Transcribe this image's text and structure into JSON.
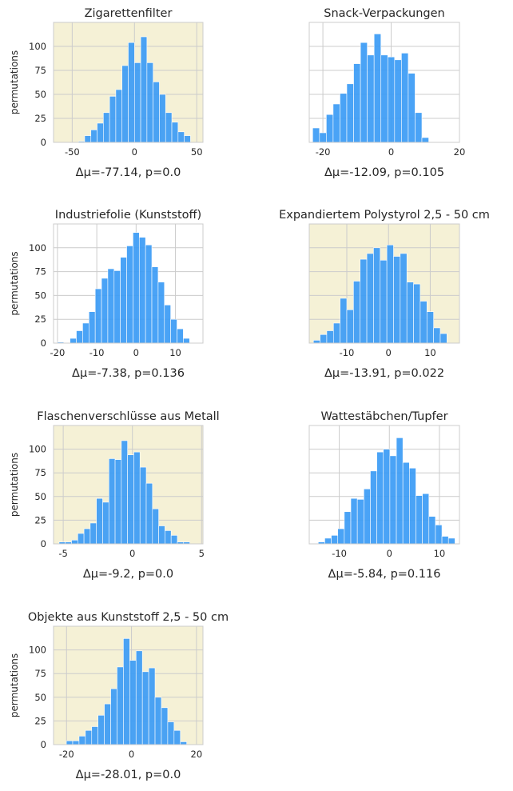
{
  "figure": {
    "background": "#ffffff",
    "highlight_background": "#f5f1d6",
    "bar_color": "#3b9bf5",
    "grid_color": "#cccccc"
  },
  "chart_data": [
    {
      "type": "bar",
      "title": "Zigarettenfilter",
      "ylabel": "permutations",
      "xlabel": "Δμ=-77.14, p=0.0",
      "highlight": true,
      "xlim": [
        -65,
        55
      ],
      "ylim": [
        0,
        125
      ],
      "xticks": [
        -50,
        0,
        50
      ],
      "yticks": [
        0,
        25,
        50,
        75,
        100
      ],
      "bin_start": -60,
      "bin_width": 5,
      "counts": [
        0,
        0,
        0,
        1,
        7,
        13,
        20,
        31,
        48,
        55,
        80,
        104,
        83,
        110,
        83,
        63,
        50,
        31,
        21,
        11,
        7,
        0,
        0
      ]
    },
    {
      "type": "bar",
      "title": "Snack-Verpackungen",
      "ylabel": "",
      "xlabel": "Δμ=-12.09, p=0.105",
      "highlight": false,
      "xlim": [
        -24,
        20
      ],
      "ylim": [
        0,
        125
      ],
      "xticks": [
        -20,
        0,
        20
      ],
      "yticks": [
        0,
        25,
        50,
        75,
        100
      ],
      "bin_start": -23,
      "bin_width": 2,
      "counts": [
        15,
        10,
        29,
        40,
        51,
        61,
        82,
        104,
        91,
        113,
        91,
        89,
        86,
        93,
        72,
        31,
        5
      ]
    },
    {
      "type": "bar",
      "title": "Industriefolie (Kunststoff)",
      "ylabel": "permutations",
      "xlabel": "Δμ=-7.38, p=0.136",
      "highlight": false,
      "xlim": [
        -21,
        17
      ],
      "ylim": [
        0,
        125
      ],
      "xticks": [
        -20,
        -10,
        0,
        10
      ],
      "yticks": [
        0,
        25,
        50,
        75,
        100
      ],
      "bin_start": -20,
      "bin_width": 1.6,
      "counts": [
        1,
        0,
        5,
        13,
        21,
        33,
        57,
        68,
        78,
        76,
        90,
        102,
        116,
        111,
        103,
        80,
        64,
        40,
        25,
        15,
        5
      ]
    },
    {
      "type": "bar",
      "title": "Expandiertem Polystyrol 2,5 - 50 cm",
      "ylabel": "",
      "xlabel": "Δμ=-13.91, p=0.022",
      "highlight": true,
      "xlim": [
        -19,
        17
      ],
      "ylim": [
        0,
        125
      ],
      "xticks": [
        -10,
        0,
        10
      ],
      "yticks": [
        0,
        25,
        50,
        75,
        100
      ],
      "bin_start": -18,
      "bin_width": 1.6,
      "counts": [
        3,
        9,
        13,
        21,
        47,
        35,
        65,
        88,
        94,
        100,
        87,
        103,
        91,
        94,
        64,
        62,
        44,
        33,
        16,
        10
      ]
    },
    {
      "type": "bar",
      "title": "Flaschenverschlüsse aus Metall",
      "ylabel": "permutations",
      "xlabel": "Δμ=-9.2, p=0.0",
      "highlight": true,
      "xlim": [
        -5.7,
        5.1
      ],
      "ylim": [
        0,
        125
      ],
      "xticks": [
        -5,
        0,
        5
      ],
      "yticks": [
        0,
        25,
        50,
        75,
        100
      ],
      "bin_start": -5.3,
      "bin_width": 0.45,
      "counts": [
        2,
        2,
        4,
        11,
        16,
        22,
        48,
        44,
        90,
        89,
        109,
        94,
        97,
        81,
        64,
        37,
        19,
        14,
        9,
        2,
        2,
        0
      ]
    },
    {
      "type": "bar",
      "title": "Wattestäbchen/Tupfer",
      "ylabel": "",
      "xlabel": "Δμ=-5.84, p=0.116",
      "highlight": false,
      "xlim": [
        -16,
        14
      ],
      "ylim": [
        0,
        125
      ],
      "xticks": [
        -10,
        0,
        10
      ],
      "yticks": [
        0,
        25,
        50,
        75,
        100
      ],
      "bin_start": -14.2,
      "bin_width": 1.3,
      "counts": [
        2,
        6,
        9,
        16,
        34,
        48,
        47,
        58,
        77,
        97,
        100,
        93,
        112,
        86,
        80,
        51,
        53,
        29,
        20,
        8,
        6
      ]
    },
    {
      "type": "bar",
      "title": "Objekte aus Kunststoff 2,5 - 50 cm",
      "ylabel": "permutations",
      "xlabel": "Δμ=-28.01, p=0.0",
      "highlight": true,
      "xlim": [
        -24,
        22
      ],
      "ylim": [
        0,
        125
      ],
      "xticks": [
        -20,
        0,
        20
      ],
      "yticks": [
        0,
        25,
        50,
        75,
        100
      ],
      "bin_start": -22,
      "bin_width": 1.95,
      "counts": [
        0,
        4,
        4,
        9,
        15,
        19,
        31,
        43,
        59,
        82,
        112,
        89,
        99,
        77,
        81,
        50,
        39,
        24,
        15,
        3,
        0,
        0
      ]
    }
  ]
}
